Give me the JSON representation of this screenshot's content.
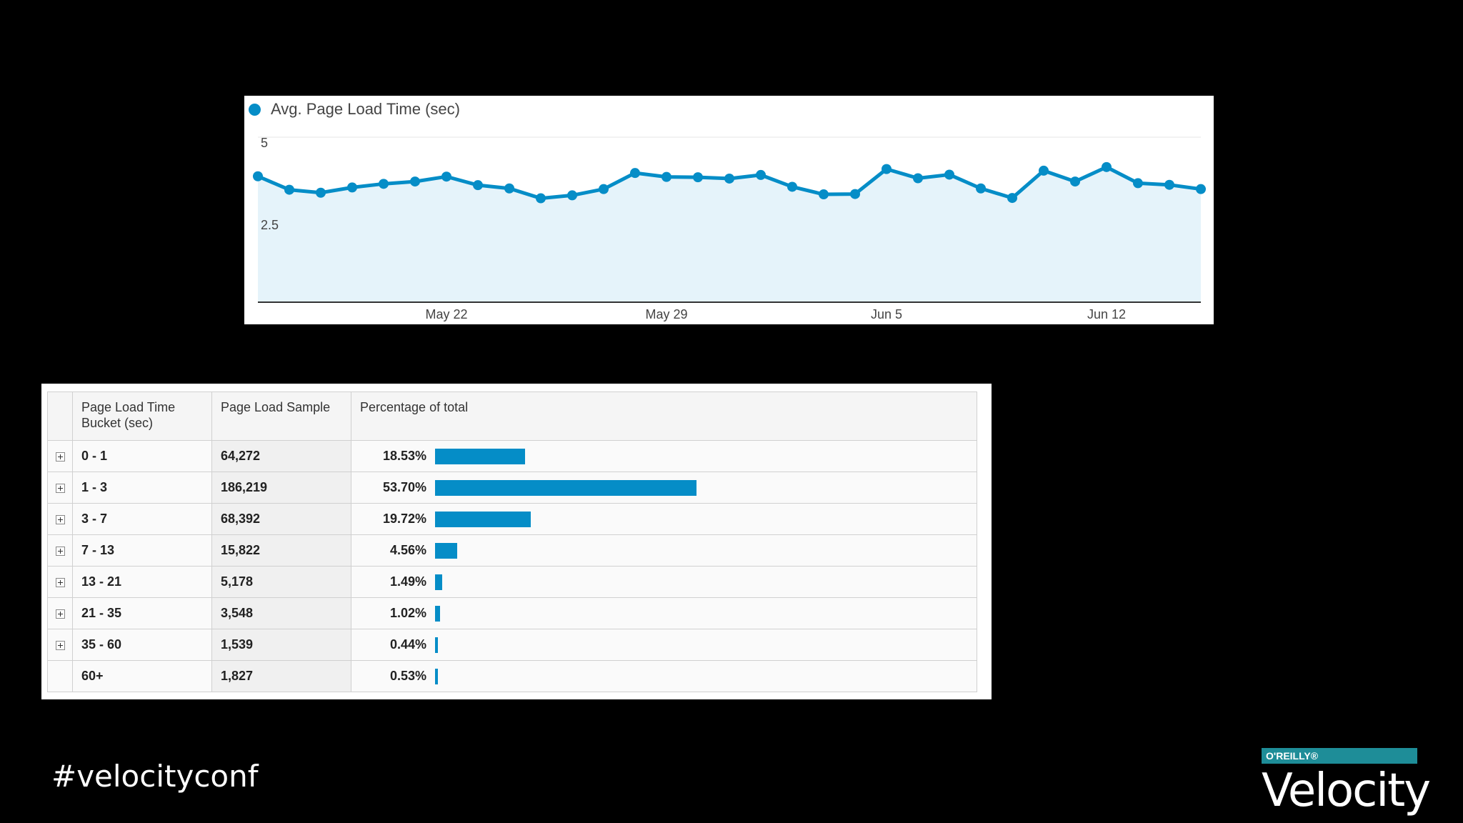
{
  "chart_data": [
    {
      "type": "area",
      "title": "",
      "xlabel": "",
      "ylabel": "",
      "legend": [
        "Avg. Page Load Time (sec)"
      ],
      "legend_placement": "top-left",
      "series": [
        {
          "name": "Avg. Page Load Time (sec)",
          "x": [
            "2013-05-16",
            "2013-05-17",
            "2013-05-18",
            "2013-05-19",
            "2013-05-20",
            "2013-05-21",
            "2013-05-22",
            "2013-05-23",
            "2013-05-24",
            "2013-05-25",
            "2013-05-26",
            "2013-05-27",
            "2013-05-28",
            "2013-05-29",
            "2013-05-30",
            "2013-05-31",
            "2013-06-01",
            "2013-06-02",
            "2013-06-03",
            "2013-06-04",
            "2013-06-05",
            "2013-06-06",
            "2013-06-07",
            "2013-06-08",
            "2013-06-09",
            "2013-06-10",
            "2013-06-11",
            "2013-06-12",
            "2013-06-13",
            "2013-06-14",
            "2013-06-15"
          ],
          "values": [
            3.81,
            3.4,
            3.31,
            3.47,
            3.58,
            3.65,
            3.8,
            3.54,
            3.44,
            3.14,
            3.23,
            3.42,
            3.91,
            3.79,
            3.78,
            3.74,
            3.85,
            3.49,
            3.26,
            3.27,
            4.03,
            3.75,
            3.86,
            3.44,
            3.15,
            3.98,
            3.65,
            4.09,
            3.6,
            3.55,
            3.42
          ]
        }
      ],
      "x_tick_labels": [
        "May 22",
        "May 29",
        "Jun 5",
        "Jun 12"
      ],
      "x_tick_positions": [
        "2013-05-22",
        "2013-05-29",
        "2013-06-05",
        "2013-06-12"
      ],
      "y_tick_labels": [
        "5",
        "2.5"
      ],
      "ylim": [
        0,
        5
      ],
      "grid": true,
      "colors": {
        "line": "#058dc7",
        "fill": "#e5f3fa",
        "grid": "#e6e6e6"
      }
    },
    {
      "type": "table",
      "columns": [
        "",
        "Page Load Time Bucket (sec)",
        "Page Load Sample",
        "Percentage of total"
      ],
      "rows": [
        {
          "bucket": "0 - 1",
          "sample": "64,272",
          "percent": "18.53%",
          "share": 18.53,
          "expandable": true
        },
        {
          "bucket": "1 - 3",
          "sample": "186,219",
          "percent": "53.70%",
          "share": 53.7,
          "expandable": true
        },
        {
          "bucket": "3 - 7",
          "sample": "68,392",
          "percent": "19.72%",
          "share": 19.72,
          "expandable": true
        },
        {
          "bucket": "7 - 13",
          "sample": "15,822",
          "percent": "4.56%",
          "share": 4.56,
          "expandable": true
        },
        {
          "bucket": "13 - 21",
          "sample": "5,178",
          "percent": "1.49%",
          "share": 1.49,
          "expandable": true
        },
        {
          "bucket": "21 - 35",
          "sample": "3,548",
          "percent": "1.02%",
          "share": 1.02,
          "expandable": true
        },
        {
          "bucket": "35 - 60",
          "sample": "1,539",
          "percent": "0.44%",
          "share": 0.44,
          "expandable": true
        },
        {
          "bucket": "60+",
          "sample": "1,827",
          "percent": "0.53%",
          "share": 0.53,
          "expandable": false
        }
      ],
      "colors": {
        "bar": "#058dc7"
      }
    }
  ],
  "footer": {
    "hashtag": "#velocityconf",
    "publisher": "O'REILLY®",
    "brand": "Velocity"
  }
}
